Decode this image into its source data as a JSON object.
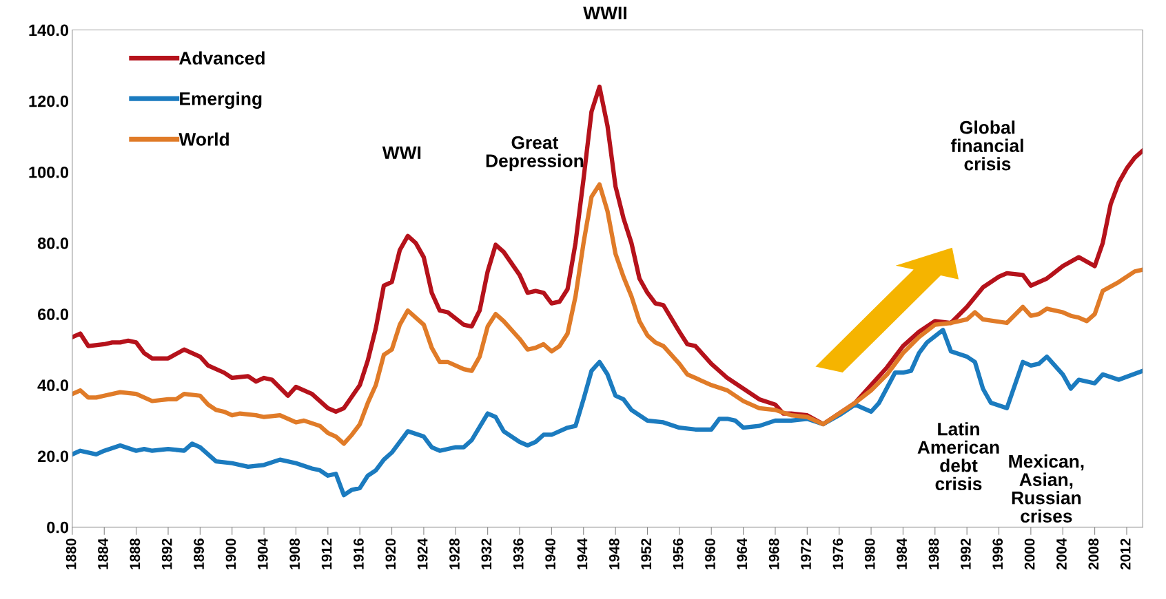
{
  "chart_data": {
    "type": "line",
    "legend": "top left",
    "grid": false,
    "marker": "none",
    "line_style": "solid",
    "xlim": [
      1880,
      2014
    ],
    "ylim": [
      0,
      140
    ],
    "xticks": [
      1880,
      1884,
      1888,
      1892,
      1896,
      1900,
      1904,
      1908,
      1912,
      1916,
      1920,
      1924,
      1928,
      1932,
      1936,
      1940,
      1944,
      1948,
      1952,
      1956,
      1960,
      1964,
      1968,
      1972,
      1976,
      1980,
      1984,
      1988,
      1992,
      1996,
      2000,
      2004,
      2008,
      2012
    ],
    "yticks": [
      {
        "value": 0,
        "label": "0.0"
      },
      {
        "value": 20,
        "label": "20.0"
      },
      {
        "value": 40,
        "label": "40.0"
      },
      {
        "value": 60,
        "label": "60.0"
      },
      {
        "value": 80,
        "label": "80.0"
      },
      {
        "value": 100,
        "label": "100.0"
      },
      {
        "value": 120,
        "label": "120.0"
      },
      {
        "value": 140,
        "label": "140.0"
      }
    ],
    "annotations": [
      "WWI",
      "Great\nDepression",
      "WWII",
      "Global\nfinancial\ncrisis",
      "Latin\nAmerican\ndebt\ncrisis",
      "Mexican,\nAsian,\nRussian\ncrises"
    ],
    "series": [
      {
        "name": "Advanced",
        "color": "#b5121b",
        "x": [
          1880,
          1881,
          1882,
          1884,
          1885,
          1886,
          1887,
          1888,
          1889,
          1890,
          1892,
          1894,
          1895,
          1896,
          1897,
          1899,
          1900,
          1902,
          1903,
          1904,
          1905,
          1907,
          1908,
          1910,
          1912,
          1913,
          1914,
          1916,
          1917,
          1918,
          1919,
          1920,
          1921,
          1922,
          1923,
          1924,
          1925,
          1926,
          1927,
          1929,
          1930,
          1931,
          1932,
          1933,
          1934,
          1936,
          1937,
          1938,
          1939,
          1940,
          1941,
          1942,
          1943,
          1944,
          1945,
          1946,
          1947,
          1948,
          1949,
          1950,
          1951,
          1952,
          1953,
          1954,
          1956,
          1957,
          1958,
          1960,
          1962,
          1964,
          1966,
          1968,
          1969,
          1970,
          1972,
          1974,
          1976,
          1978,
          1980,
          1982,
          1984,
          1986,
          1988,
          1990,
          1992,
          1994,
          1996,
          1997,
          1999,
          2000,
          2002,
          2004,
          2006,
          2008,
          2009,
          2010,
          2011,
          2012,
          2013,
          2014
        ],
        "values": [
          53.5,
          54.5,
          51,
          51.5,
          52,
          52,
          52.5,
          52,
          49,
          47.5,
          47.5,
          50,
          49,
          48,
          45.5,
          43.5,
          42,
          42.5,
          41,
          42,
          41.5,
          37,
          39.5,
          37.5,
          33.5,
          32.5,
          33.5,
          40,
          47,
          56,
          68,
          69,
          78,
          82,
          80,
          76,
          66,
          61,
          60.5,
          57,
          56.5,
          61,
          72,
          79.5,
          77.5,
          71,
          66,
          66.5,
          66,
          63,
          63.5,
          67,
          80,
          98,
          117,
          124,
          113,
          96,
          87,
          80,
          70,
          66,
          63,
          62.5,
          55,
          51.5,
          51,
          46,
          42,
          39,
          36,
          34.5,
          32,
          32,
          31.5,
          29,
          32,
          35,
          40,
          45,
          51,
          55,
          58,
          57.5,
          62,
          67.5,
          70.5,
          71.5,
          71,
          68,
          70,
          73.5,
          76,
          73.5,
          80,
          91,
          97,
          101,
          104,
          106
        ]
      },
      {
        "name": "Emerging",
        "color": "#1b7bbf",
        "x": [
          1880,
          1881,
          1883,
          1884,
          1886,
          1888,
          1889,
          1890,
          1892,
          1894,
          1895,
          1896,
          1898,
          1900,
          1902,
          1904,
          1906,
          1908,
          1910,
          1911,
          1912,
          1913,
          1914,
          1915,
          1916,
          1917,
          1918,
          1919,
          1920,
          1922,
          1924,
          1925,
          1926,
          1928,
          1929,
          1930,
          1932,
          1933,
          1934,
          1936,
          1937,
          1938,
          1939,
          1940,
          1942,
          1943,
          1944,
          1945,
          1946,
          1947,
          1948,
          1949,
          1950,
          1952,
          1954,
          1956,
          1958,
          1960,
          1961,
          1962,
          1963,
          1964,
          1966,
          1968,
          1970,
          1972,
          1974,
          1976,
          1978,
          1979,
          1980,
          1981,
          1983,
          1984,
          1985,
          1986,
          1987,
          1989,
          1990,
          1992,
          1993,
          1994,
          1995,
          1997,
          1999,
          2000,
          2001,
          2002,
          2004,
          2005,
          2006,
          2008,
          2009,
          2011,
          2014
        ],
        "values": [
          20.5,
          21.5,
          20.5,
          21.5,
          23,
          21.5,
          22,
          21.5,
          22,
          21.5,
          23.5,
          22.5,
          18.5,
          18,
          17,
          17.5,
          19,
          18,
          16.5,
          16,
          14.5,
          15,
          9,
          10.5,
          11,
          14.5,
          16,
          19,
          21,
          27,
          25.5,
          22.5,
          21.5,
          22.5,
          22.5,
          24.5,
          32,
          31,
          27,
          24,
          23,
          24,
          26,
          26,
          28,
          28.5,
          36,
          44,
          46.5,
          43,
          37,
          36,
          33,
          30,
          29.5,
          28,
          27.5,
          27.5,
          30.5,
          30.5,
          30,
          28,
          28.5,
          30,
          30,
          30.5,
          29,
          31.5,
          34.5,
          33.5,
          32.5,
          35,
          43.5,
          43.5,
          44,
          49,
          52,
          55.5,
          49.5,
          48,
          46.5,
          39,
          35,
          33.5,
          46.5,
          45.5,
          46,
          48,
          43,
          39,
          41.5,
          40.5,
          43,
          41.5,
          44
        ]
      },
      {
        "name": "World",
        "color": "#e07b28",
        "x": [
          1880,
          1881,
          1882,
          1883,
          1884,
          1886,
          1888,
          1890,
          1892,
          1893,
          1894,
          1896,
          1897,
          1898,
          1899,
          1900,
          1901,
          1903,
          1904,
          1906,
          1908,
          1909,
          1911,
          1912,
          1913,
          1914,
          1915,
          1916,
          1917,
          1918,
          1919,
          1920,
          1921,
          1922,
          1924,
          1925,
          1926,
          1927,
          1929,
          1930,
          1931,
          1932,
          1933,
          1934,
          1936,
          1937,
          1938,
          1939,
          1940,
          1941,
          1942,
          1943,
          1944,
          1945,
          1946,
          1947,
          1948,
          1949,
          1950,
          1951,
          1952,
          1953,
          1954,
          1956,
          1957,
          1958,
          1960,
          1962,
          1964,
          1966,
          1968,
          1970,
          1972,
          1974,
          1976,
          1978,
          1980,
          1982,
          1984,
          1986,
          1988,
          1990,
          1992,
          1993,
          1994,
          1997,
          1999,
          2000,
          2001,
          2002,
          2004,
          2005,
          2006,
          2007,
          2008,
          2009,
          2011,
          2013,
          2014
        ],
        "values": [
          37.5,
          38.5,
          36.5,
          36.5,
          37,
          38,
          37.5,
          35.5,
          36,
          36,
          37.5,
          37,
          34.5,
          33,
          32.5,
          31.5,
          32,
          31.5,
          31,
          31.5,
          29.5,
          30,
          28.5,
          26.5,
          25.5,
          23.5,
          26,
          29,
          35,
          40,
          48.5,
          50,
          57,
          61,
          57,
          50.5,
          46.5,
          46.5,
          44.5,
          44,
          48,
          56.5,
          60,
          58,
          53,
          50,
          50.5,
          51.5,
          49.5,
          51,
          54.5,
          65,
          80,
          93,
          96.5,
          89,
          77,
          70.5,
          65,
          58,
          54,
          52,
          51,
          46,
          43,
          42,
          40,
          38.5,
          35.5,
          33.5,
          33,
          31.5,
          31,
          29,
          32,
          35,
          38.5,
          43,
          49,
          53.5,
          57,
          57.5,
          58.5,
          60.5,
          58.5,
          57.5,
          62,
          59.5,
          60,
          61.5,
          60.5,
          59.5,
          59,
          58,
          60,
          66.5,
          69,
          72,
          72.5
        ]
      }
    ]
  }
}
